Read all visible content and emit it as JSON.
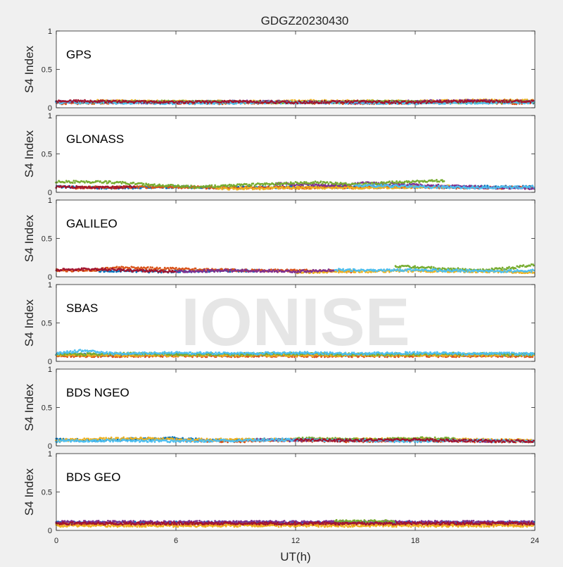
{
  "figure": {
    "title": "GDGZ20230430",
    "xlabel": "UT(h)",
    "watermark": "IONISE"
  },
  "colors": {
    "background": "#f0f0f0",
    "axes_bg": "#ffffff",
    "watermark": "#e6e6e6",
    "series": [
      "#0072BD",
      "#D95319",
      "#EDB120",
      "#7E2F8E",
      "#77AC30",
      "#4DBEEE",
      "#A2142F"
    ]
  },
  "chart_data": [
    {
      "type": "scatter",
      "panel_label": "GPS",
      "ylabel": "S4 Index",
      "xlim": [
        0,
        24
      ],
      "ylim": [
        0,
        1
      ],
      "xticks": [
        0,
        6,
        12,
        18,
        24
      ],
      "yticks": [
        0,
        0.5,
        1
      ],
      "show_xticklabels": false,
      "grid": false,
      "series": [
        {
          "color": "#0072BD",
          "x": [
            0,
            3,
            6,
            9,
            12,
            15,
            18,
            21,
            24
          ],
          "y": [
            0.07,
            0.08,
            0.07,
            0.08,
            0.07,
            0.08,
            0.07,
            0.08,
            0.07
          ]
        },
        {
          "color": "#D95319",
          "x": [
            0,
            4,
            8,
            12,
            16,
            20,
            24
          ],
          "y": [
            0.06,
            0.07,
            0.06,
            0.07,
            0.06,
            0.07,
            0.06
          ]
        },
        {
          "color": "#EDB120",
          "x": [
            2,
            6,
            10,
            14,
            18,
            22,
            24
          ],
          "y": [
            0.09,
            0.08,
            0.08,
            0.09,
            0.08,
            0.1,
            0.09
          ]
        },
        {
          "color": "#7E2F8E",
          "x": [
            0,
            5,
            10,
            15,
            20,
            24
          ],
          "y": [
            0.08,
            0.07,
            0.08,
            0.07,
            0.09,
            0.08
          ]
        },
        {
          "color": "#77AC30",
          "x": [
            1,
            6,
            11,
            16,
            21,
            24
          ],
          "y": [
            0.07,
            0.08,
            0.07,
            0.08,
            0.07,
            0.08
          ]
        },
        {
          "color": "#4DBEEE",
          "x": [
            0,
            6,
            12,
            18,
            24
          ],
          "y": [
            0.07,
            0.06,
            0.07,
            0.06,
            0.07
          ]
        },
        {
          "color": "#A2142F",
          "x": [
            0,
            3,
            6,
            9,
            12,
            15,
            18,
            21,
            24
          ],
          "y": [
            0.09,
            0.08,
            0.07,
            0.08,
            0.07,
            0.08,
            0.07,
            0.09,
            0.08
          ]
        }
      ]
    },
    {
      "type": "scatter",
      "panel_label": "GLONASS",
      "ylabel": "S4 Index",
      "xlim": [
        0,
        24
      ],
      "ylim": [
        0,
        1
      ],
      "xticks": [
        0,
        6,
        12,
        18,
        24
      ],
      "yticks": [
        0,
        0.5,
        1
      ],
      "show_xticklabels": false,
      "grid": false,
      "series": [
        {
          "color": "#0072BD",
          "x": [
            0,
            3,
            6,
            9,
            12,
            16,
            20,
            24
          ],
          "y": [
            0.07,
            0.06,
            0.07,
            0.06,
            0.07,
            0.07,
            0.07,
            0.07
          ]
        },
        {
          "color": "#D95319",
          "x": [
            1,
            5,
            9,
            13,
            17,
            21,
            24
          ],
          "y": [
            0.06,
            0.07,
            0.06,
            0.06,
            0.07,
            0.06,
            0.06
          ]
        },
        {
          "color": "#EDB120",
          "x": [
            8,
            10,
            12,
            14,
            16,
            18,
            20
          ],
          "y": [
            0.05,
            0.05,
            0.06,
            0.06,
            0.06,
            0.07,
            0.08
          ]
        },
        {
          "color": "#7E2F8E",
          "x": [
            11,
            12.5,
            14,
            15.5,
            22,
            24
          ],
          "y": [
            0.11,
            0.1,
            0.09,
            0.12,
            0.06,
            0.05
          ]
        },
        {
          "color": "#77AC30",
          "x": [
            0,
            3,
            5,
            7,
            13,
            15,
            17,
            19.5
          ],
          "y": [
            0.14,
            0.13,
            0.09,
            0.07,
            0.13,
            0.1,
            0.13,
            0.15
          ]
        },
        {
          "color": "#4DBEEE",
          "x": [
            15,
            17,
            19,
            21,
            24
          ],
          "y": [
            0.09,
            0.08,
            0.07,
            0.06,
            0.07
          ]
        },
        {
          "color": "#A2142F",
          "x": [
            0,
            2,
            4
          ],
          "y": [
            0.07,
            0.06,
            0.07
          ]
        }
      ]
    },
    {
      "type": "scatter",
      "panel_label": "GALILEO",
      "ylabel": "S4 Index",
      "xlim": [
        0,
        24
      ],
      "ylim": [
        0,
        1
      ],
      "xticks": [
        0,
        6,
        12,
        18,
        24
      ],
      "yticks": [
        0,
        0.5,
        1
      ],
      "show_xticklabels": false,
      "grid": false,
      "series": [
        {
          "color": "#0072BD",
          "x": [
            2,
            4,
            6,
            8,
            10
          ],
          "y": [
            0.08,
            0.07,
            0.07,
            0.08,
            0.08
          ]
        },
        {
          "color": "#D95319",
          "x": [
            0,
            1,
            2,
            3,
            8,
            12,
            15
          ],
          "y": [
            0.09,
            0.08,
            0.09,
            0.12,
            0.09,
            0.08,
            0.07
          ]
        },
        {
          "color": "#EDB120",
          "x": [
            12,
            14,
            16,
            18,
            20,
            22,
            24
          ],
          "y": [
            0.06,
            0.07,
            0.07,
            0.08,
            0.07,
            0.07,
            0.06
          ]
        },
        {
          "color": "#7E2F8E",
          "x": [
            6,
            8,
            10,
            12,
            14
          ],
          "y": [
            0.07,
            0.08,
            0.08,
            0.07,
            0.09
          ]
        },
        {
          "color": "#77AC30",
          "x": [
            17,
            18.5,
            20,
            21.5,
            23,
            24
          ],
          "y": [
            0.14,
            0.12,
            0.1,
            0.09,
            0.12,
            0.16
          ]
        },
        {
          "color": "#4DBEEE",
          "x": [
            14,
            16,
            18,
            20,
            22,
            24
          ],
          "y": [
            0.09,
            0.08,
            0.09,
            0.08,
            0.07,
            0.08
          ]
        },
        {
          "color": "#A2142F",
          "x": [
            0,
            2,
            4,
            6
          ],
          "y": [
            0.09,
            0.1,
            0.08,
            0.07
          ]
        }
      ]
    },
    {
      "type": "scatter",
      "panel_label": "SBAS",
      "ylabel": "S4 Index",
      "xlim": [
        0,
        24
      ],
      "ylim": [
        0,
        1
      ],
      "xticks": [
        0,
        6,
        12,
        18,
        24
      ],
      "yticks": [
        0,
        0.5,
        1
      ],
      "show_xticklabels": false,
      "grid": false,
      "series": [
        {
          "color": "#0072BD",
          "x": [
            0,
            3,
            6,
            9,
            12,
            15,
            18,
            21,
            24
          ],
          "y": [
            0.09,
            0.08,
            0.09,
            0.08,
            0.09,
            0.08,
            0.09,
            0.08,
            0.09
          ]
        },
        {
          "color": "#D95319",
          "x": [
            0,
            6,
            12,
            18,
            24
          ],
          "y": [
            0.07,
            0.07,
            0.07,
            0.07,
            0.07
          ]
        },
        {
          "color": "#EDB120",
          "x": [
            0,
            6,
            12,
            18,
            24
          ],
          "y": [
            0.08,
            0.08,
            0.08,
            0.08,
            0.08
          ]
        },
        {
          "color": "#77AC30",
          "x": [
            0,
            4,
            8,
            12,
            16,
            20,
            24
          ],
          "y": [
            0.09,
            0.1,
            0.09,
            0.1,
            0.09,
            0.1,
            0.09
          ]
        },
        {
          "color": "#4DBEEE",
          "x": [
            0,
            1.2,
            3,
            6,
            9,
            12,
            15,
            18,
            21,
            24
          ],
          "y": [
            0.1,
            0.14,
            0.1,
            0.11,
            0.1,
            0.11,
            0.1,
            0.11,
            0.1,
            0.1
          ]
        }
      ]
    },
    {
      "type": "scatter",
      "panel_label": "BDS NGEO",
      "ylabel": "S4 Index",
      "xlim": [
        0,
        24
      ],
      "ylim": [
        0,
        1
      ],
      "xticks": [
        0,
        6,
        12,
        18,
        24
      ],
      "yticks": [
        0,
        0.5,
        1
      ],
      "show_xticklabels": false,
      "grid": false,
      "series": [
        {
          "color": "#0072BD",
          "x": [
            0,
            2,
            4,
            6,
            8,
            10,
            12
          ],
          "y": [
            0.08,
            0.07,
            0.09,
            0.1,
            0.07,
            0.08,
            0.09
          ]
        },
        {
          "color": "#D95319",
          "x": [
            6,
            9,
            12,
            15,
            18,
            21,
            24
          ],
          "y": [
            0.07,
            0.06,
            0.07,
            0.06,
            0.07,
            0.06,
            0.06
          ]
        },
        {
          "color": "#EDB120",
          "x": [
            0,
            2,
            4,
            6,
            12,
            18,
            21,
            24
          ],
          "y": [
            0.07,
            0.09,
            0.1,
            0.08,
            0.08,
            0.09,
            0.08,
            0.07
          ]
        },
        {
          "color": "#7E2F8E",
          "x": [
            10,
            12,
            14,
            16,
            18,
            20,
            22
          ],
          "y": [
            0.08,
            0.07,
            0.08,
            0.07,
            0.08,
            0.07,
            0.06
          ]
        },
        {
          "color": "#77AC30",
          "x": [
            12,
            14,
            16,
            18,
            20
          ],
          "y": [
            0.1,
            0.09,
            0.08,
            0.1,
            0.09
          ]
        },
        {
          "color": "#4DBEEE",
          "x": [
            0,
            3,
            6,
            9,
            12,
            15,
            18,
            21,
            24
          ],
          "y": [
            0.06,
            0.07,
            0.06,
            0.07,
            0.08,
            0.07,
            0.06,
            0.07,
            0.06
          ]
        },
        {
          "color": "#A2142F",
          "x": [
            12,
            14,
            16,
            18,
            20,
            24
          ],
          "y": [
            0.08,
            0.07,
            0.08,
            0.08,
            0.07,
            0.06
          ]
        }
      ]
    },
    {
      "type": "scatter",
      "panel_label": "BDS GEO",
      "ylabel": "S4 Index",
      "xlim": [
        0,
        24
      ],
      "ylim": [
        0,
        1
      ],
      "xticks": [
        0,
        6,
        12,
        18,
        24
      ],
      "yticks": [
        0,
        0.5,
        1
      ],
      "show_xticklabels": true,
      "grid": false,
      "series": [
        {
          "color": "#0072BD",
          "x": [
            0,
            6,
            12,
            18,
            24
          ],
          "y": [
            0.1,
            0.1,
            0.1,
            0.1,
            0.1
          ]
        },
        {
          "color": "#D95319",
          "x": [
            0,
            6,
            12,
            18,
            24
          ],
          "y": [
            0.08,
            0.08,
            0.08,
            0.08,
            0.08
          ]
        },
        {
          "color": "#EDB120",
          "x": [
            0,
            6,
            12,
            18,
            24
          ],
          "y": [
            0.06,
            0.06,
            0.06,
            0.06,
            0.06
          ]
        },
        {
          "color": "#7E2F8E",
          "x": [
            0,
            6,
            12,
            18,
            24
          ],
          "y": [
            0.11,
            0.11,
            0.11,
            0.11,
            0.11
          ]
        },
        {
          "color": "#77AC30",
          "x": [
            14,
            15.5,
            17
          ],
          "y": [
            0.12,
            0.12,
            0.12
          ]
        },
        {
          "color": "#A2142F",
          "x": [
            0,
            6,
            12,
            18,
            24
          ],
          "y": [
            0.09,
            0.09,
            0.09,
            0.09,
            0.09
          ]
        }
      ]
    }
  ]
}
